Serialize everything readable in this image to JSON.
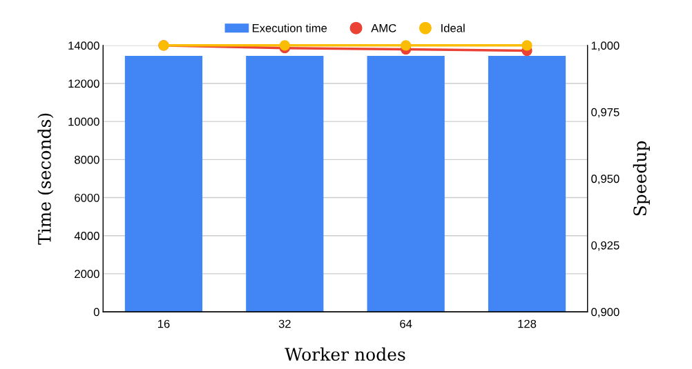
{
  "chart_data": {
    "type": "bar",
    "xlabel": "Worker nodes",
    "ylabel": "Time (seconds)",
    "y2label": "Speedup",
    "categories": [
      "16",
      "32",
      "64",
      "128"
    ],
    "series": [
      {
        "name": "Execution time",
        "color": "#4285f4",
        "values": [
          13450,
          13450,
          13450,
          13450
        ]
      },
      {
        "name": "AMC",
        "type": "line",
        "axis": "y2",
        "color": "#ea4335",
        "values": [
          1.0,
          0.999,
          0.9985,
          0.998
        ]
      },
      {
        "name": "Ideal",
        "type": "line",
        "axis": "y2",
        "color": "#fbbc04",
        "values": [
          1.0,
          1.0,
          1.0,
          1.0
        ]
      }
    ],
    "ylim": [
      0,
      14000
    ],
    "yticks": [
      0,
      2000,
      4000,
      6000,
      8000,
      10000,
      12000,
      14000
    ],
    "y2lim": [
      0.9,
      1.0
    ],
    "y2ticks": [
      {
        "value": 0.9,
        "label": "0,900"
      },
      {
        "value": 0.925,
        "label": "0,925"
      },
      {
        "value": 0.95,
        "label": "0,950"
      },
      {
        "value": 0.975,
        "label": "0,975"
      },
      {
        "value": 1.0,
        "label": "1,000"
      }
    ],
    "grid": "y",
    "legend": "top",
    "marker": "circle"
  }
}
